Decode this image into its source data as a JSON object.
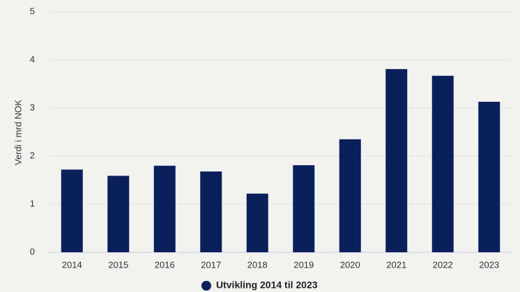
{
  "chart_data": {
    "type": "bar",
    "y_axis_label": "Verdi i mrd NOK",
    "categories": [
      "2014",
      "2015",
      "2016",
      "2017",
      "2018",
      "2019",
      "2020",
      "2021",
      "2022",
      "2023"
    ],
    "series": [
      {
        "name": "Utvikling 2014 til 2023",
        "color": "#0a1f5c",
        "values": [
          1.72,
          1.59,
          1.8,
          1.68,
          1.22,
          1.81,
          2.35,
          3.81,
          3.67,
          3.13
        ]
      }
    ],
    "ylim": [
      0,
      5
    ],
    "yticks": [
      0,
      1,
      2,
      3,
      4,
      5
    ],
    "grid": true
  }
}
